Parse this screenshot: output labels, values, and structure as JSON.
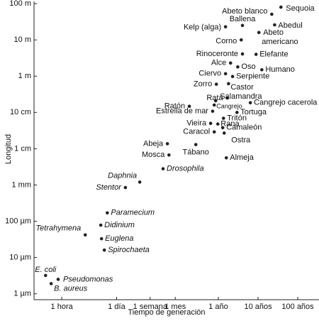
{
  "chart_data": {
    "type": "scatter",
    "x_label": "Tiempo de generación",
    "y_label": "Longitud",
    "xscale": "log",
    "yscale": "log",
    "color": "#222",
    "xlim": [
      0.2,
      3000000
    ],
    "ylim": [
      6e-07,
      110
    ],
    "xticks": [
      {
        "value": 1,
        "label": "1 hora"
      },
      {
        "value": 24,
        "label": "1 día"
      },
      {
        "value": 168,
        "label": "1 semana"
      },
      {
        "value": 720,
        "label": "1 mes"
      },
      {
        "value": 8760,
        "label": "1 año"
      },
      {
        "value": 87600,
        "label": "10 años"
      },
      {
        "value": 876000,
        "label": "100 años"
      }
    ],
    "yticks": [
      {
        "value": 100,
        "label": "100 m"
      },
      {
        "value": 10,
        "label": "10 m"
      },
      {
        "value": 1,
        "label": "1 m"
      },
      {
        "value": 0.1,
        "label": "10 cm"
      },
      {
        "value": 0.01,
        "label": "1 cm"
      },
      {
        "value": 0.001,
        "label": "1 mm"
      },
      {
        "value": 0.0001,
        "label": "100 µm"
      },
      {
        "value": 1e-05,
        "label": "10 µm"
      },
      {
        "value": 1e-06,
        "label": "1 µm"
      }
    ],
    "points": [
      {
        "label": "Sequoia",
        "x": 330000,
        "y": 80
      },
      {
        "label": "Abeto blanco",
        "x": 194000,
        "y": 51
      },
      {
        "label": "Ballena",
        "x": 35500,
        "y": 25
      },
      {
        "label": "Abedul",
        "x": 229000,
        "y": 26
      },
      {
        "label": "Kelp (alga)",
        "x": 13300,
        "y": 23
      },
      {
        "label": "Abeto americano",
        "x": 92000,
        "y": 16
      },
      {
        "label": "Corno",
        "x": 33000,
        "y": 10
      },
      {
        "label": "Rinoceronte",
        "x": 35500,
        "y": 4.1
      },
      {
        "label": "Elefante",
        "x": 78000,
        "y": 4
      },
      {
        "label": "Alce",
        "x": 17800,
        "y": 2.3
      },
      {
        "label": "Oso",
        "x": 27000,
        "y": 1.8
      },
      {
        "label": "Humano",
        "x": 109000,
        "y": 1.5
      },
      {
        "label": "Ciervo",
        "x": 13300,
        "y": 1.17
      },
      {
        "label": "Serpiente",
        "x": 20000,
        "y": 0.98
      },
      {
        "label": "Zorro",
        "x": 7800,
        "y": 0.6
      },
      {
        "label": "Castor",
        "x": 15800,
        "y": 0.62
      },
      {
        "label": "Rata",
        "x": 14700,
        "y": 0.25
      },
      {
        "label": "Salamandra",
        "x": 7500,
        "y": 0.21
      },
      {
        "label": "Ratón",
        "x": 1630,
        "y": 0.148
      },
      {
        "label": "Cangrejo",
        "x": 6900,
        "y": 0.16
      },
      {
        "label": "Cangrejo cacerola",
        "x": 56000,
        "y": 0.185
      },
      {
        "label": "Estrella de mar",
        "x": 6300,
        "y": 0.108
      },
      {
        "label": "Tortuga",
        "x": 25800,
        "y": 0.1
      },
      {
        "label": "Tritón",
        "x": 11800,
        "y": 0.069
      },
      {
        "label": "Vieira",
        "x": 5600,
        "y": 0.05
      },
      {
        "label": "Rana",
        "x": 8500,
        "y": 0.048
      },
      {
        "label": "Caracol",
        "x": 6900,
        "y": 0.029
      },
      {
        "label": "Camaleón",
        "x": 11300,
        "y": 0.038
      },
      {
        "label": "Ostra",
        "x": 12300,
        "y": 0.027
      },
      {
        "label": "Abeja",
        "x": 457,
        "y": 0.0137
      },
      {
        "label": "Tábano",
        "x": 2370,
        "y": 0.013
      },
      {
        "label": "Mosca",
        "x": 500,
        "y": 0.0067
      },
      {
        "label": "Almeja",
        "x": 13900,
        "y": 0.0056
      },
      {
        "label": "Drosophila",
        "x": 355,
        "y": 0.0028
      },
      {
        "label": "Daphnia",
        "x": 92,
        "y": 0.0012
      },
      {
        "label": "Stentor",
        "x": 40,
        "y": 0.00085
      },
      {
        "label": "Paramecium",
        "x": 14,
        "y": 0.00017
      },
      {
        "label": "Didinium",
        "x": 9.6,
        "y": 7.8e-05
      },
      {
        "label": "Tetrahymena",
        "x": 3.9,
        "y": 4.2e-05
      },
      {
        "label": "Euglena",
        "x": 10,
        "y": 3.3e-05
      },
      {
        "label": "Spirochaeta",
        "x": 11.8,
        "y": 1.6e-05
      },
      {
        "label": "E. coli",
        "x": 0.39,
        "y": 3.2e-06
      },
      {
        "label": "Pseudomonas",
        "x": 0.81,
        "y": 2.5e-06
      },
      {
        "label": "B. aureus",
        "x": 0.54,
        "y": 1.9e-06
      }
    ]
  }
}
